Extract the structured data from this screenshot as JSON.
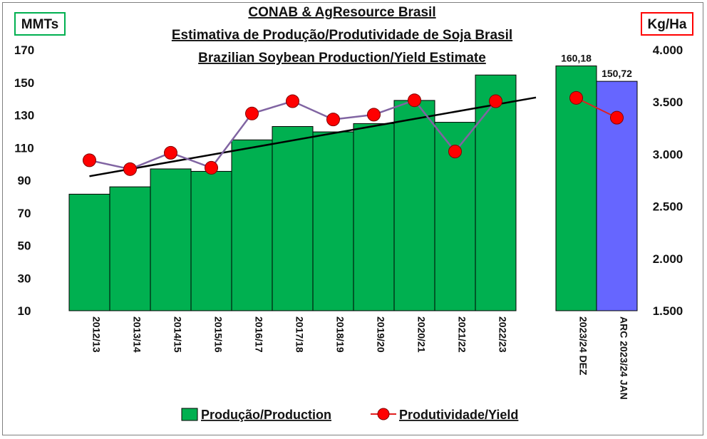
{
  "chart_data": {
    "type": "bar",
    "title_lines": [
      "CONAB & AgResource Brasil",
      "Estimativa de Produção/Produtividade de Soja Brasil",
      "Brazilian Soybean Production/Yield Estimate"
    ],
    "y_left_unit": "MMTs",
    "y_right_unit": "Kg/Ha",
    "y_left_ticks": [
      "170",
      "150",
      "130",
      "110",
      "90",
      "70",
      "50",
      "30",
      "10"
    ],
    "y_right_ticks": [
      "4.000",
      "3.500",
      "3.000",
      "2.500",
      "2.000",
      "1.500"
    ],
    "y_left_range": [
      10,
      170
    ],
    "y_right_range": [
      1500,
      4000
    ],
    "categories": [
      "2012/13",
      "2013/14",
      "2014/15",
      "2015/16",
      "2016/17",
      "2017/18",
      "2018/19",
      "2019/20",
      "2020/21",
      "2021/22",
      "2022/23"
    ],
    "production": [
      81.5,
      86.0,
      97.0,
      95.5,
      114.8,
      123.0,
      119.7,
      124.8,
      139.0,
      125.6,
      154.6
    ],
    "yield": [
      2942,
      2857,
      3014,
      2870,
      3390,
      3508,
      3333,
      3379,
      3517,
      3026,
      3508
    ],
    "forecast_categories": [
      "2023/24 DEZ",
      "ARC 2023/24 JAN"
    ],
    "forecast_production": [
      160.18,
      150.72
    ],
    "forecast_labels": [
      "160,18",
      "150,72"
    ],
    "forecast_yield": [
      3540,
      3350
    ],
    "forecast_colors": [
      "#00b050",
      "#6666ff"
    ],
    "trendline": [
      92.5,
      140.8
    ],
    "legend": {
      "production": "Produção/Production",
      "yield": "Produtividade/Yield"
    },
    "colors": {
      "production": "#00b050",
      "yield_marker": "#ff0000",
      "yield_line": "#8064a2",
      "forecast_yield_line": "#e02020",
      "trend": "#000000"
    }
  }
}
